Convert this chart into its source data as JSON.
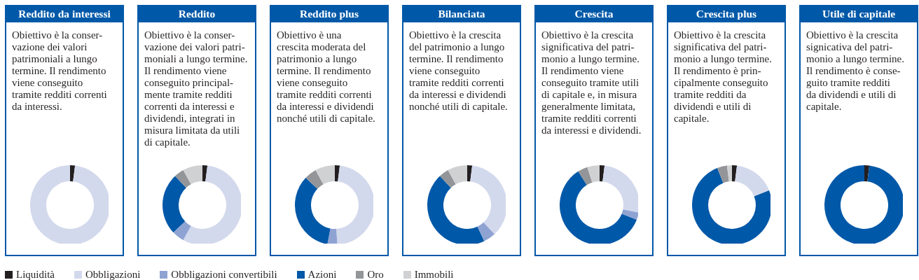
{
  "chart_data": [
    {
      "type": "donut",
      "title": "Reddito da interessi",
      "annotations": [
        "Obiettivo è la conser-\nvazione dei valori\npatrimoniali a lungo\ntermine. Il rendimento\nviene conseguito\ntramite redditi correnti\nda interessi."
      ],
      "categories": [
        "Liquidità",
        "Obbligazioni",
        "Obbligazioni convertibili",
        "Azioni",
        "Oro",
        "Immobili"
      ],
      "values": [
        2,
        98,
        0,
        0,
        0,
        0
      ],
      "colors": [
        "#231f20",
        "#d3d9ec",
        "#8fa3d3",
        "#0058a8",
        "#939598",
        "#d0d1d3"
      ],
      "legend": "bottom"
    },
    {
      "type": "donut",
      "title": "Reddito",
      "annotations": [
        "Obiettivo è la conser-\nvazione dei valori patri-\nmoniali a lungo termine.\nIl rendimento viene\nconseguito principal-\nmente tramite redditi\ncorrenti da interessi e\ndividendi, integrati in\nmisura limitata da utili\ndi capitale."
      ],
      "categories": [
        null,
        null,
        null,
        null,
        null,
        null
      ],
      "values": [
        2,
        56,
        5,
        25,
        4,
        8
      ],
      "colors": [
        "#231f20",
        "#d3d9ec",
        "#8fa3d3",
        "#0058a8",
        "#939598",
        "#d0d1d3"
      ]
    },
    {
      "type": "donut",
      "title": "Reddito plus",
      "annotations": [
        "Obiettivo è una\ncrescita moderata del\npatrimonio a lungo\ntermine. Il rendimento\nviene conseguito\ntramite redditi correnti\nda interessi e dividendi\nnonché utili di capitale."
      ],
      "categories": [
        null,
        null,
        null,
        null,
        null,
        null
      ],
      "values": [
        2,
        47,
        4,
        34,
        5,
        8
      ],
      "colors": [
        "#231f20",
        "#d3d9ec",
        "#8fa3d3",
        "#0058a8",
        "#939598",
        "#d0d1d3"
      ]
    },
    {
      "type": "donut",
      "title": "Bilanciata",
      "annotations": [
        "Obiettivo è la crescita\ndel patrimonio a lungo\ntermine. Il rendimento\nviene conseguito\ntramite redditi correnti\nda interessi e dividendi\nnonché utili di capitale."
      ],
      "categories": [
        null,
        null,
        null,
        null,
        null,
        null
      ],
      "values": [
        2,
        36,
        5,
        45,
        4,
        8
      ],
      "colors": [
        "#231f20",
        "#d3d9ec",
        "#8fa3d3",
        "#0058a8",
        "#939598",
        "#d0d1d3"
      ]
    },
    {
      "type": "donut",
      "title": "Crescita",
      "annotations": [
        "Obiettivo è la crescita\nsignificativa del patri-\nmonio a lungo termine.\nIl rendimento viene\nconseguito tramite utili\ndi capitale e, in misura\ngeneralmente limitata,\ntramite redditi correnti\nda interessi e dividendi."
      ],
      "categories": [
        null,
        null,
        null,
        null,
        null,
        null
      ],
      "values": [
        2,
        26,
        3,
        60,
        4,
        5
      ],
      "colors": [
        "#231f20",
        "#d3d9ec",
        "#8fa3d3",
        "#0058a8",
        "#939598",
        "#d0d1d3"
      ]
    },
    {
      "type": "donut",
      "title": "Crescita plus",
      "annotations": [
        "Obiettivo è la crescita\nsignificativa del patri-\nmonio a lungo termine.\nIl rendimento è prin-\ncipalmente conseguito\ntramite redditi da\ndividendi e utili di\ncapitale."
      ],
      "categories": [
        null,
        null,
        null,
        null,
        null,
        null
      ],
      "values": [
        2,
        17,
        0,
        75,
        4,
        2
      ],
      "colors": [
        "#231f20",
        "#d3d9ec",
        null,
        "#0058a8",
        "#939598",
        "#d0d1d3"
      ]
    },
    {
      "type": "donut",
      "title": "Utile di capitale",
      "annotations": [
        "Obiettivo è la crescita\nsignicativa del patri-\nmonio a lungo termine.\nIl rendimento è conse-\nguito tramite redditi\nda dividendi e utili di\ncapitale."
      ],
      "categories": [
        null,
        null,
        null,
        null,
        null,
        null
      ],
      "values": [
        2,
        0,
        0,
        98,
        0,
        0
      ],
      "colors": [
        "#231f20",
        null,
        null,
        "#0058a8",
        null,
        null
      ]
    }
  ]
}
